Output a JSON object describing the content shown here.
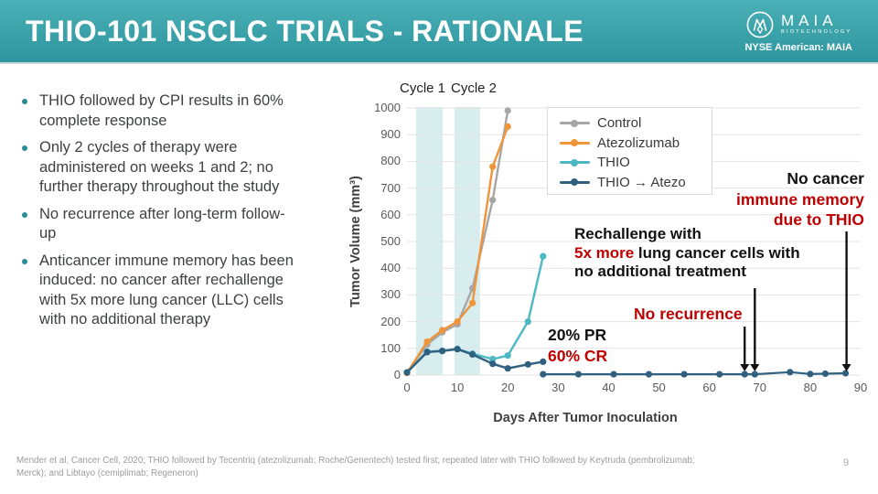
{
  "header": {
    "title": "THIO-101 NSCLC TRIALS - RATIONALE",
    "logo": {
      "brand": "MAIA",
      "sub": "BIOTECHNOLOGY",
      "ticker": "NYSE American: MAIA"
    },
    "accent_color": "#359ba3"
  },
  "bullets": [
    {
      "text": "THIO followed by CPI results in 60%\ncomplete response"
    },
    {
      "text": "Only 2 cycles of therapy were\nadministered on weeks 1 and 2; no\nfurther therapy throughout the study"
    },
    {
      "text": "No recurrence after long-term follow-\nup"
    },
    {
      "text": "Anticancer immune memory has been\ninduced: no cancer after rechallenge\nwith 5x more lung cancer (LLC) cells\nwith no additional therapy"
    }
  ],
  "chart_data": {
    "type": "line",
    "xlabel": "Days After Tumor Inoculation",
    "ylabel": "Tumor Volume (mm³)",
    "xlim": [
      0,
      90
    ],
    "ylim": [
      0,
      1000
    ],
    "xticks": [
      0,
      10,
      20,
      30,
      40,
      50,
      60,
      70,
      80,
      90
    ],
    "yticks": [
      0,
      100,
      200,
      300,
      400,
      500,
      600,
      700,
      800,
      900,
      1000
    ],
    "grid": true,
    "legend_position": "top-right",
    "band_color": "#d8edee",
    "cycle_bands": [
      {
        "label": "Cycle 1",
        "x_start": 1.8,
        "x_end": 7.1
      },
      {
        "label": "Cycle 2",
        "x_start": 9.4,
        "x_end": 14.5
      }
    ],
    "series": [
      {
        "name": "Control",
        "color": "#a6a6a6",
        "points": [
          [
            0,
            10
          ],
          [
            4,
            115
          ],
          [
            7,
            160
          ],
          [
            10,
            190
          ],
          [
            13,
            325
          ],
          [
            17,
            655
          ],
          [
            20,
            990
          ]
        ]
      },
      {
        "name": "Atezolizumab",
        "color": "#f0943a",
        "points": [
          [
            0,
            8
          ],
          [
            4,
            125
          ],
          [
            7,
            168
          ],
          [
            10,
            200
          ],
          [
            13,
            270
          ],
          [
            17,
            780
          ],
          [
            20,
            930
          ]
        ]
      },
      {
        "name": "THIO",
        "color": "#4bb8c3",
        "points": [
          [
            0,
            10
          ],
          [
            4,
            88
          ],
          [
            7,
            91
          ],
          [
            10,
            98
          ],
          [
            13,
            80
          ],
          [
            17,
            60
          ],
          [
            20,
            73
          ],
          [
            24,
            200
          ],
          [
            27,
            445
          ]
        ]
      },
      {
        "name": "THIO → Atezo",
        "color": "#30607f",
        "points": [
          [
            0,
            10
          ],
          [
            4,
            86
          ],
          [
            7,
            90
          ],
          [
            10,
            97
          ],
          [
            13,
            77
          ],
          [
            17,
            42
          ],
          [
            20,
            25
          ],
          [
            24,
            40
          ],
          [
            27,
            50
          ]
        ],
        "tail_points": [
          [
            27,
            3
          ],
          [
            34,
            3
          ],
          [
            41,
            3
          ],
          [
            48,
            3
          ],
          [
            55,
            3
          ],
          [
            62,
            3
          ],
          [
            67,
            3
          ],
          [
            69,
            3
          ],
          [
            76,
            11
          ],
          [
            80,
            4
          ],
          [
            83,
            5
          ],
          [
            87,
            7
          ]
        ]
      }
    ]
  },
  "annotations": {
    "pr": "20% PR",
    "cr": "60% CR",
    "no_recurrence": "No recurrence",
    "rechallenge_line1": "Rechallenge with",
    "rechallenge_line2_red": "5x more",
    "rechallenge_line2_rest": " lung cancer cells with",
    "rechallenge_line3": "no additional treatment",
    "no_cancer_line1": "No cancer",
    "no_cancer_line2": "immune memory",
    "no_cancer_line3": "due to THIO",
    "arrow_days": [
      67,
      69,
      87.2
    ],
    "red_color": "#c00000"
  },
  "footer": {
    "citation": "Mender et al, Cancer Cell, 2020; THIO followed by Tecentriq (atezolizumab; Roche/Genentech) tested first; repeated later with THIO followed by Keytruda (pembrolizumab;\nMerck); and Libtayo (cemiplimab; Regeneron)",
    "page": "9"
  }
}
